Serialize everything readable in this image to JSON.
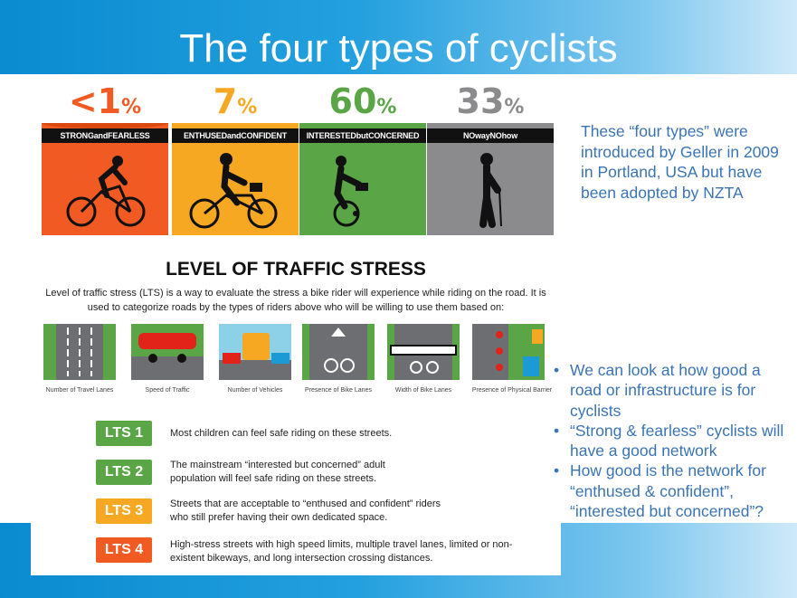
{
  "slide": {
    "title": "The four types of cyclists",
    "intro_text": "These “four types” were introduced by Geller in 2009 in Portland, USA but have been adopted by NZTA",
    "bullets": [
      "We can look at how good a road or infrastructure is for cyclists",
      "“Strong & fearless” cyclists will have a good network",
      "How good is the network for “enthused & confident”, “interested but concerned”?"
    ]
  },
  "infographic": {
    "cyclist_types": [
      {
        "percent": "<1",
        "unit": "%",
        "label": "STRONGandFEARLESS",
        "color": "#f15a22"
      },
      {
        "percent": "7",
        "unit": "%",
        "label": "ENTHUSEDandCONFIDENT",
        "color": "#f7a823"
      },
      {
        "percent": "60",
        "unit": "%",
        "label": "INTERESTEDbutCONCERNED",
        "color": "#5aa546"
      },
      {
        "percent": "33",
        "unit": "%",
        "label": "NOwayNOhow",
        "color": "#8b8b8d"
      }
    ],
    "lts_heading": "LEVEL OF TRAFFIC STRESS",
    "lts_description": "Level of traffic stress (LTS) is a way to evaluate the stress a bike rider will experience while riding on the road. It is used to categorize roads by the types of riders above who will be willing to use them based on:",
    "factors": [
      "Number of Travel Lanes",
      "Speed of Traffic",
      "Number of Vehicles",
      "Presence of Bike Lanes",
      "Width of Bike Lanes",
      "Presence of Physical Barrier"
    ],
    "lts_levels": [
      {
        "label": "LTS 1",
        "text": "Most children can feel safe riding on these streets.",
        "color": "#5aa546"
      },
      {
        "label": "LTS 2",
        "text": "The mainstream “interested but concerned” adult population will feel safe riding on these streets.",
        "color": "#5aa546"
      },
      {
        "label": "LTS 3",
        "text": "Streets that are acceptable to “enthused and confident” riders who still prefer having their own dedicated space.",
        "color": "#f7a823"
      },
      {
        "label": "LTS 4",
        "text": "High-stress streets with high speed limits, multiple travel lanes, limited or non-existent bikeways, and long intersection crossing distances.",
        "color": "#f15a22"
      }
    ]
  }
}
